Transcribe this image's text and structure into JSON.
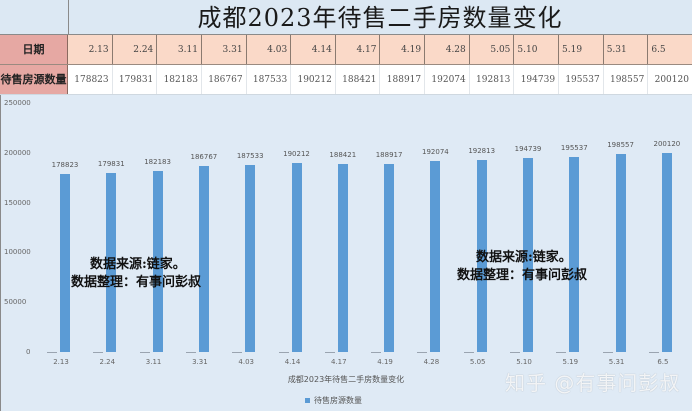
{
  "sheet": {
    "title": "成都2023年待售二手房数量变化",
    "row_headers": {
      "date": "日期",
      "count": "待售房源数量"
    },
    "dates": [
      "2.13",
      "2.24",
      "3.11",
      "3.31",
      "4.03",
      "4.14",
      "4.17",
      "4.19",
      "4.28",
      "5.05",
      "5.10",
      "5.19",
      "5.31",
      "6.5"
    ],
    "counts": [
      "178823",
      "179831",
      "182183",
      "186767",
      "187533",
      "190212",
      "188421",
      "188917",
      "192074",
      "192813",
      "194739",
      "195537",
      "198557",
      "200120"
    ]
  },
  "chart_data": {
    "type": "bar",
    "title": "成都2023年待售二手房数量变化",
    "xlabel": "成都2023年待售二手房数量变化",
    "ylabel": "",
    "categories": [
      "2.13",
      "2.24",
      "3.11",
      "3.31",
      "4.03",
      "4.14",
      "4.17",
      "4.19",
      "4.28",
      "5.05",
      "5.10",
      "5.19",
      "5.31",
      "6.5"
    ],
    "series": [
      {
        "name": "待售房源数量",
        "values": [
          178823,
          179831,
          182183,
          186767,
          187533,
          190212,
          188421,
          188917,
          192074,
          192813,
          194739,
          195537,
          198557,
          200120
        ],
        "color": "#5b9bd5"
      }
    ],
    "yticks": [
      "250000",
      "200000",
      "150000",
      "100000",
      "50000",
      "0"
    ],
    "ylim": [
      0,
      250000
    ],
    "grid": false,
    "legend_position": "bottom",
    "data_labels": true
  },
  "annotations": {
    "note_left": [
      "数据来源:链家。",
      "数据整理：有事问彭叔"
    ],
    "note_right": [
      "数据来源:链家。",
      "数据整理：有事问彭叔"
    ],
    "watermark": "知乎 @有事问彭叔"
  }
}
